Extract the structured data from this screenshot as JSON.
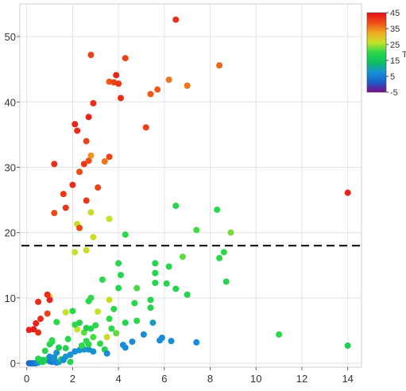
{
  "chart_data": {
    "type": "scatter",
    "title": "",
    "xlabel": "",
    "ylabel": "",
    "xlim": [
      -0.3,
      14.6
    ],
    "ylim": [
      -0.6,
      55
    ],
    "xticks": [
      0,
      2,
      4,
      6,
      8,
      10,
      12,
      14
    ],
    "yticks": [
      0,
      10,
      20,
      30,
      40,
      50
    ],
    "grid": true,
    "reference_line": {
      "y": 18,
      "style": "dashed",
      "color": "#000000"
    },
    "colorbar": {
      "range": [
        -5,
        45
      ],
      "ticks": [
        45,
        35,
        25,
        15,
        5,
        -5
      ],
      "label": "T",
      "colormap": [
        "#7b0a8b",
        "#1a5ec9",
        "#1890d8",
        "#0dc060",
        "#2bd84a",
        "#c7e327",
        "#f1a820",
        "#ef4d16",
        "#e60f1a"
      ]
    },
    "points": [
      {
        "x": 0.1,
        "y": 0,
        "c": 3
      },
      {
        "x": 0.2,
        "y": 0,
        "c": 3
      },
      {
        "x": 0.3,
        "y": 0,
        "c": 4
      },
      {
        "x": 0.4,
        "y": 0,
        "c": 5
      },
      {
        "x": 0.5,
        "y": 0.1,
        "c": 8
      },
      {
        "x": 0.6,
        "y": 0.3,
        "c": 16
      },
      {
        "x": 0.7,
        "y": 0.2,
        "c": 18
      },
      {
        "x": 0.8,
        "y": 0.4,
        "c": 19
      },
      {
        "x": 0.9,
        "y": 0.6,
        "c": 20
      },
      {
        "x": 1.0,
        "y": 0.3,
        "c": 6
      },
      {
        "x": 1.1,
        "y": 0.2,
        "c": 5
      },
      {
        "x": 1.2,
        "y": 0.4,
        "c": 7
      },
      {
        "x": 1.3,
        "y": 0.1,
        "c": 6
      },
      {
        "x": 1.4,
        "y": 0.2,
        "c": 8
      },
      {
        "x": 1.5,
        "y": 0.6,
        "c": 18
      },
      {
        "x": 0.5,
        "y": 0.7,
        "c": 19
      },
      {
        "x": 0.7,
        "y": 0.5,
        "c": 17
      },
      {
        "x": 1.0,
        "y": 1.0,
        "c": 7
      },
      {
        "x": 1.2,
        "y": 0.9,
        "c": 8
      },
      {
        "x": 1.3,
        "y": 1.6,
        "c": 8
      },
      {
        "x": 1.7,
        "y": 1.0,
        "c": 8
      },
      {
        "x": 1.9,
        "y": 1.3,
        "c": 8
      },
      {
        "x": 1.6,
        "y": 0.5,
        "c": 7
      },
      {
        "x": 1.9,
        "y": 0.2,
        "c": 19
      },
      {
        "x": 0.8,
        "y": 1.9,
        "c": 19
      },
      {
        "x": 1.1,
        "y": 3.5,
        "c": 18
      },
      {
        "x": 1.0,
        "y": 2.9,
        "c": 19
      },
      {
        "x": 1.4,
        "y": 2.4,
        "c": 17
      },
      {
        "x": 1.7,
        "y": 2.3,
        "c": 18
      },
      {
        "x": 2.1,
        "y": 1.8,
        "c": 7
      },
      {
        "x": 2.3,
        "y": 2.0,
        "c": 8
      },
      {
        "x": 2.5,
        "y": 2.1,
        "c": 8
      },
      {
        "x": 2.4,
        "y": 2.7,
        "c": 20
      },
      {
        "x": 2.6,
        "y": 3.4,
        "c": 20
      },
      {
        "x": 2.7,
        "y": 2.1,
        "c": 8
      },
      {
        "x": 2.9,
        "y": 1.8,
        "c": 8
      },
      {
        "x": 2.2,
        "y": 5.2,
        "c": 26
      },
      {
        "x": 2.5,
        "y": 4.7,
        "c": 22
      },
      {
        "x": 2.1,
        "y": 5.9,
        "c": 20
      },
      {
        "x": 2.3,
        "y": 6.2,
        "c": 19
      },
      {
        "x": 2.6,
        "y": 5.4,
        "c": 18
      },
      {
        "x": 2.8,
        "y": 5.3,
        "c": 19
      },
      {
        "x": 2.7,
        "y": 2.9,
        "c": 20
      },
      {
        "x": 2.9,
        "y": 4.0,
        "c": 21
      },
      {
        "x": 3.0,
        "y": 5.8,
        "c": 20
      },
      {
        "x": 3.1,
        "y": 7.9,
        "c": 26
      },
      {
        "x": 3.2,
        "y": 3.0,
        "c": 20
      },
      {
        "x": 3.5,
        "y": 4.0,
        "c": 27
      },
      {
        "x": 3.4,
        "y": 2.1,
        "c": 18
      },
      {
        "x": 3.5,
        "y": 1.5,
        "c": 7
      },
      {
        "x": 3.7,
        "y": 5.3,
        "c": 20
      },
      {
        "x": 3.6,
        "y": 6.8,
        "c": 20
      },
      {
        "x": 3.6,
        "y": 9.7,
        "c": 27
      },
      {
        "x": 3.8,
        "y": 8.3,
        "c": 19
      },
      {
        "x": 3.9,
        "y": 4.6,
        "c": 22
      },
      {
        "x": 4.0,
        "y": 11.5,
        "c": 19
      },
      {
        "x": 4.1,
        "y": 13.5,
        "c": 19
      },
      {
        "x": 4.0,
        "y": 15.3,
        "c": 19
      },
      {
        "x": 4.2,
        "y": 2.8,
        "c": 7
      },
      {
        "x": 4.3,
        "y": 2.4,
        "c": 7
      },
      {
        "x": 4.3,
        "y": 6.2,
        "c": 19
      },
      {
        "x": 4.6,
        "y": 3.3,
        "c": 7
      },
      {
        "x": 4.7,
        "y": 9.2,
        "c": 19
      },
      {
        "x": 4.8,
        "y": 11.5,
        "c": 21
      },
      {
        "x": 4.8,
        "y": 6.5,
        "c": 20
      },
      {
        "x": 5.1,
        "y": 4.4,
        "c": 7
      },
      {
        "x": 5.4,
        "y": 9.7,
        "c": 19
      },
      {
        "x": 5.4,
        "y": 8.5,
        "c": 19
      },
      {
        "x": 5.5,
        "y": 6.2,
        "c": 9
      },
      {
        "x": 5.6,
        "y": 12.3,
        "c": 19
      },
      {
        "x": 5.6,
        "y": 13.8,
        "c": 19
      },
      {
        "x": 5.6,
        "y": 15.3,
        "c": 19
      },
      {
        "x": 5.8,
        "y": 3.5,
        "c": 7
      },
      {
        "x": 5.9,
        "y": 3.9,
        "c": 7
      },
      {
        "x": 6.1,
        "y": 12.2,
        "c": 19
      },
      {
        "x": 6.2,
        "y": 14.8,
        "c": 19
      },
      {
        "x": 6.3,
        "y": 3.4,
        "c": 7
      },
      {
        "x": 6.5,
        "y": 11.4,
        "c": 19
      },
      {
        "x": 6.8,
        "y": 16.3,
        "c": 22
      },
      {
        "x": 7.0,
        "y": 10.5,
        "c": 19
      },
      {
        "x": 7.4,
        "y": 3.2,
        "c": 7
      },
      {
        "x": 7.4,
        "y": 20.4,
        "c": 21
      },
      {
        "x": 8.3,
        "y": 23.5,
        "c": 20
      },
      {
        "x": 8.4,
        "y": 16.1,
        "c": 20
      },
      {
        "x": 8.6,
        "y": 17.0,
        "c": 20
      },
      {
        "x": 8.7,
        "y": 12.5,
        "c": 19
      },
      {
        "x": 8.9,
        "y": 20.0,
        "c": 23
      },
      {
        "x": 11.0,
        "y": 4.4,
        "c": 20
      },
      {
        "x": 14.0,
        "y": 2.7,
        "c": 18
      },
      {
        "x": 6.5,
        "y": 24.1,
        "c": 19
      },
      {
        "x": 4.3,
        "y": 19.7,
        "c": 20
      },
      {
        "x": 1.8,
        "y": 3.7,
        "c": 19
      },
      {
        "x": 1.1,
        "y": 3.3,
        "c": 20
      },
      {
        "x": 1.3,
        "y": 6.3,
        "c": 20
      },
      {
        "x": 2.0,
        "y": 8.0,
        "c": 20
      },
      {
        "x": 2.7,
        "y": 9.5,
        "c": 20
      },
      {
        "x": 2.8,
        "y": 10.0,
        "c": 20
      },
      {
        "x": 3.3,
        "y": 12.8,
        "c": 20
      },
      {
        "x": 1.7,
        "y": 7.8,
        "c": 26
      },
      {
        "x": 1.0,
        "y": 10.2,
        "c": 28
      },
      {
        "x": 0.9,
        "y": 7.6,
        "c": 40
      },
      {
        "x": 0.9,
        "y": 10.5,
        "c": 42
      },
      {
        "x": 1.0,
        "y": 9.7,
        "c": 43
      },
      {
        "x": 0.5,
        "y": 9.4,
        "c": 42
      },
      {
        "x": 0.6,
        "y": 6.8,
        "c": 42
      },
      {
        "x": 0.4,
        "y": 6.1,
        "c": 43
      },
      {
        "x": 0.3,
        "y": 5.2,
        "c": 44
      },
      {
        "x": 0.1,
        "y": 5.1,
        "c": 43
      },
      {
        "x": 0.5,
        "y": 4.7,
        "c": 42
      },
      {
        "x": 2.1,
        "y": 17.0,
        "c": 26
      },
      {
        "x": 2.6,
        "y": 17.3,
        "c": 27
      },
      {
        "x": 2.9,
        "y": 19.3,
        "c": 27
      },
      {
        "x": 2.2,
        "y": 21.3,
        "c": 27
      },
      {
        "x": 2.3,
        "y": 20.7,
        "c": 39
      },
      {
        "x": 2.8,
        "y": 23.1,
        "c": 27
      },
      {
        "x": 3.6,
        "y": 22.1,
        "c": 26
      },
      {
        "x": 1.2,
        "y": 23.0,
        "c": 39
      },
      {
        "x": 1.6,
        "y": 25.9,
        "c": 41
      },
      {
        "x": 1.7,
        "y": 23.8,
        "c": 41
      },
      {
        "x": 2.0,
        "y": 27.3,
        "c": 42
      },
      {
        "x": 2.6,
        "y": 24.9,
        "c": 41
      },
      {
        "x": 3.1,
        "y": 26.9,
        "c": 40
      },
      {
        "x": 2.3,
        "y": 29.3,
        "c": 39
      },
      {
        "x": 2.5,
        "y": 30.5,
        "c": 41
      },
      {
        "x": 1.2,
        "y": 30.5,
        "c": 42
      },
      {
        "x": 2.7,
        "y": 31.0,
        "c": 39
      },
      {
        "x": 3.4,
        "y": 30.9,
        "c": 36
      },
      {
        "x": 3.6,
        "y": 31.6,
        "c": 40
      },
      {
        "x": 2.8,
        "y": 31.8,
        "c": 34
      },
      {
        "x": 2.6,
        "y": 34.0,
        "c": 40
      },
      {
        "x": 2.2,
        "y": 35.6,
        "c": 42
      },
      {
        "x": 2.1,
        "y": 36.6,
        "c": 43
      },
      {
        "x": 2.7,
        "y": 37.7,
        "c": 43
      },
      {
        "x": 2.9,
        "y": 39.8,
        "c": 42
      },
      {
        "x": 3.6,
        "y": 43.1,
        "c": 38
      },
      {
        "x": 3.8,
        "y": 43.0,
        "c": 40
      },
      {
        "x": 4.0,
        "y": 42.8,
        "c": 41
      },
      {
        "x": 3.9,
        "y": 44.1,
        "c": 43
      },
      {
        "x": 4.1,
        "y": 40.6,
        "c": 42
      },
      {
        "x": 4.3,
        "y": 46.7,
        "c": 40
      },
      {
        "x": 2.8,
        "y": 47.2,
        "c": 40
      },
      {
        "x": 5.2,
        "y": 36.1,
        "c": 40
      },
      {
        "x": 5.4,
        "y": 41.2,
        "c": 38
      },
      {
        "x": 5.7,
        "y": 41.9,
        "c": 38
      },
      {
        "x": 6.2,
        "y": 43.4,
        "c": 36
      },
      {
        "x": 7.0,
        "y": 42.5,
        "c": 36
      },
      {
        "x": 8.4,
        "y": 45.6,
        "c": 37
      },
      {
        "x": 6.5,
        "y": 52.6,
        "c": 42
      },
      {
        "x": 14.0,
        "y": 26.1,
        "c": 43
      }
    ]
  }
}
